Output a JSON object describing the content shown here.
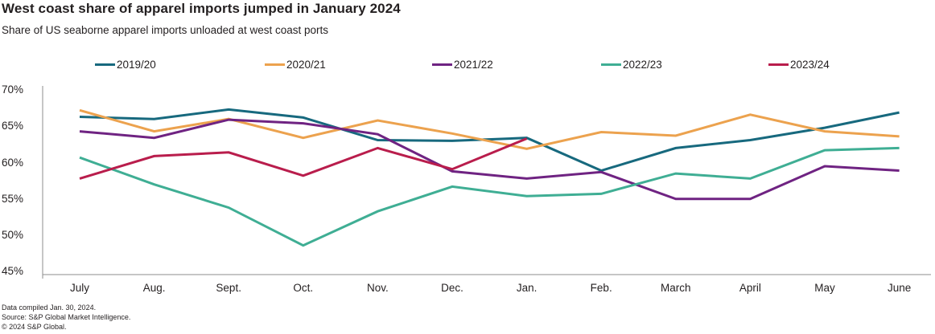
{
  "header": {
    "title": "West coast share of apparel imports jumped in January 2024",
    "subtitle": "Share of US seaborne apparel imports unloaded at west coast ports"
  },
  "chart_data": {
    "type": "line",
    "categories": [
      "July",
      "Aug.",
      "Sept.",
      "Oct.",
      "Nov.",
      "Dec.",
      "Jan.",
      "Feb.",
      "March",
      "April",
      "May",
      "June"
    ],
    "series": [
      {
        "name": "2019/20",
        "color": "#17697e",
        "values": [
          66.3,
          66.0,
          67.3,
          66.2,
          63.1,
          63.0,
          63.4,
          58.9,
          62.0,
          63.1,
          64.8,
          66.9
        ]
      },
      {
        "name": "2020/21",
        "color": "#eca24e",
        "values": [
          67.2,
          64.3,
          66.0,
          63.4,
          65.8,
          64.0,
          61.9,
          64.2,
          63.7,
          66.6,
          64.3,
          63.6
        ]
      },
      {
        "name": "2021/22",
        "color": "#6f2382",
        "values": [
          64.3,
          63.4,
          65.9,
          65.4,
          63.9,
          58.8,
          57.8,
          58.7,
          55.0,
          55.0,
          59.5,
          58.9
        ]
      },
      {
        "name": "2022/23",
        "color": "#3fae94",
        "values": [
          60.7,
          57.0,
          53.8,
          48.6,
          53.3,
          56.7,
          55.4,
          55.7,
          58.5,
          57.8,
          61.7,
          62.0
        ]
      },
      {
        "name": "2023/24",
        "color": "#b91d4c",
        "values": [
          57.8,
          60.9,
          61.4,
          58.2,
          62.0,
          59.1,
          63.3,
          null,
          null,
          null,
          null,
          null
        ]
      }
    ],
    "ylabel": "",
    "xlabel": "",
    "ylim": [
      45,
      70
    ],
    "yticks": [
      {
        "label": "70%",
        "value": 70
      },
      {
        "label": "65%",
        "value": 65
      },
      {
        "label": "60%",
        "value": 60
      },
      {
        "label": "55%",
        "value": 55
      },
      {
        "label": "50%",
        "value": 50
      },
      {
        "label": "45%",
        "value": 45
      }
    ],
    "grid": false,
    "legend_position": "top",
    "axis_color": "#8c8c8c"
  },
  "footer": {
    "lines": [
      "Data compiled Jan. 30, 2024.",
      "Source: S&P Global Market Intelligence.",
      "© 2024 S&P Global."
    ]
  }
}
